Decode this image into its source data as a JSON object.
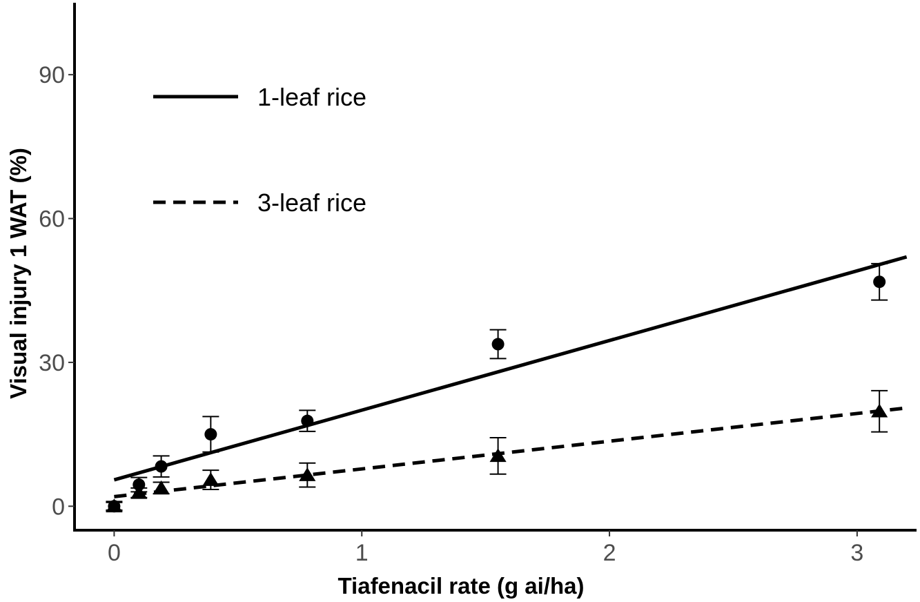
{
  "chart_data": {
    "type": "scatter",
    "xlabel": "Tiafenacil  rate (g ai/ha)",
    "ylabel": "Visual injury 1 WAT (%)",
    "xlim": [
      -0.16,
      3.24
    ],
    "ylim": [
      -5,
      105
    ],
    "x_ticks": [
      0,
      1,
      2,
      3
    ],
    "y_ticks": [
      0,
      30,
      60,
      90
    ],
    "x_tick_labels": [
      "0",
      "1",
      "2",
      "3"
    ],
    "y_tick_labels": [
      "0",
      "30",
      "60",
      "90"
    ],
    "grid": false,
    "legend_position": "top-left",
    "series": [
      {
        "name": "1-leaf rice",
        "marker": "circle",
        "line_style": "solid",
        "x": [
          0,
          0.1,
          0.19,
          0.39,
          0.78,
          1.55,
          3.09
        ],
        "y": [
          0,
          4.5,
          8.3,
          15.0,
          17.8,
          33.8,
          46.8
        ],
        "err": [
          1.0,
          1.5,
          2.2,
          3.7,
          2.2,
          3.0,
          3.8
        ],
        "fit": {
          "x": [
            0,
            3.2
          ],
          "y": [
            5.5,
            52.0
          ]
        }
      },
      {
        "name": "3-leaf rice",
        "marker": "triangle",
        "line_style": "dashed",
        "x": [
          0,
          0.1,
          0.19,
          0.39,
          0.78,
          1.55,
          3.09
        ],
        "y": [
          0,
          2.8,
          3.8,
          5.5,
          6.5,
          10.5,
          19.8
        ],
        "err": [
          0.8,
          1.0,
          1.2,
          2.0,
          2.5,
          3.8,
          4.3
        ],
        "fit": {
          "x": [
            0,
            3.2
          ],
          "y": [
            2.0,
            20.5
          ]
        }
      }
    ]
  },
  "colors": {
    "ink": "#000000",
    "tick_text": "#4d4d4d",
    "background": "#ffffff"
  }
}
